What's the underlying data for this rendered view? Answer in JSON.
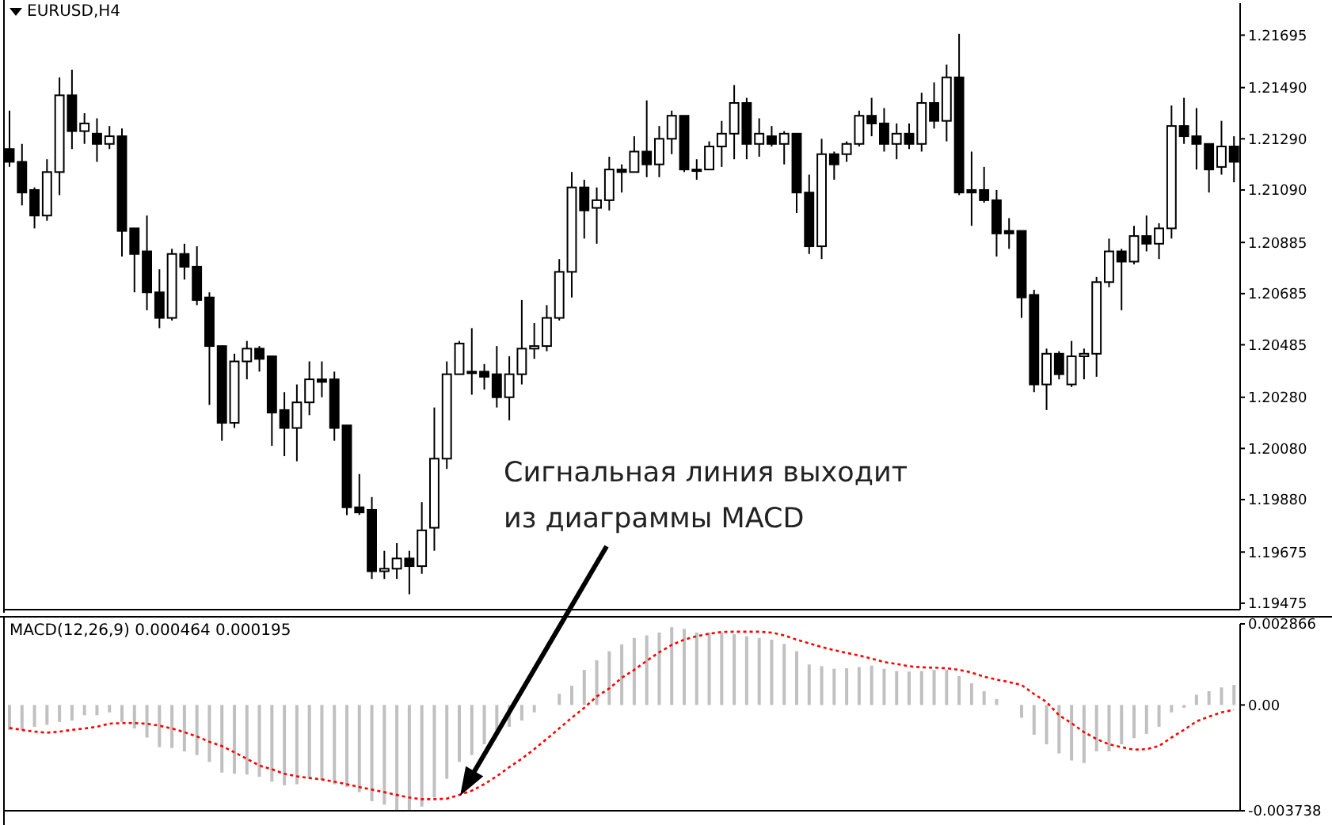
{
  "chart_data": [
    {
      "type": "candlestick",
      "title": "EURUSD,H4",
      "color": "#000000",
      "tick_labels": "y",
      "categories": [
        null,
        null,
        null,
        null,
        null,
        null,
        null,
        null,
        null,
        null,
        null,
        null,
        null,
        null,
        null,
        null,
        null,
        null,
        null,
        null,
        null,
        null,
        null,
        null,
        null,
        null,
        null,
        null,
        null,
        null,
        null,
        null,
        null,
        null,
        null,
        null,
        null,
        null,
        null,
        null,
        null,
        null,
        null,
        null,
        null,
        null,
        null,
        null,
        null,
        null,
        null,
        null,
        null,
        null,
        null,
        null,
        null,
        null,
        null,
        null,
        null,
        null,
        null,
        null,
        null,
        null,
        null,
        null,
        null,
        null,
        null,
        null,
        null,
        null,
        null,
        null,
        null,
        null,
        null,
        null,
        null,
        null,
        null,
        null,
        null,
        null,
        null,
        null,
        null,
        null,
        null,
        null,
        null,
        null,
        null,
        null,
        null,
        null,
        null
      ],
      "ohlc": [
        [
          1.2125,
          1.214,
          1.2118,
          1.212
        ],
        [
          1.212,
          1.2127,
          1.2103,
          1.2108
        ],
        [
          1.2109,
          1.211,
          1.2094,
          1.2099
        ],
        [
          1.2099,
          1.2121,
          1.2097,
          1.2116
        ],
        [
          1.2116,
          1.2153,
          1.2107,
          1.2146
        ],
        [
          1.2146,
          1.2156,
          1.2125,
          1.2132
        ],
        [
          1.2132,
          1.2139,
          1.2127,
          1.2135
        ],
        [
          1.2131,
          1.2137,
          1.212,
          1.2127
        ],
        [
          1.2127,
          1.2134,
          1.2125,
          1.213
        ],
        [
          1.213,
          1.2133,
          1.2083,
          1.2093
        ],
        [
          1.2094,
          1.2094,
          1.2069,
          1.2084
        ],
        [
          1.2085,
          1.2099,
          1.2062,
          1.2069
        ],
        [
          1.2069,
          1.2078,
          1.2055,
          1.2059
        ],
        [
          1.2059,
          1.2086,
          1.2058,
          1.2084
        ],
        [
          1.2084,
          1.2088,
          1.2074,
          1.2079
        ],
        [
          1.2079,
          1.2087,
          1.2064,
          1.2066
        ],
        [
          1.2067,
          1.2069,
          1.2025,
          1.2048
        ],
        [
          1.2048,
          1.2048,
          1.2011,
          1.2018
        ],
        [
          1.2018,
          1.2045,
          1.2016,
          1.2042
        ],
        [
          1.2042,
          1.205,
          1.2035,
          1.2047
        ],
        [
          1.2047,
          1.2048,
          1.2038,
          1.2043
        ],
        [
          1.2044,
          1.2044,
          1.2009,
          1.2022
        ],
        [
          1.2023,
          1.203,
          1.2005,
          1.2016
        ],
        [
          1.2016,
          1.2033,
          1.2003,
          1.2026
        ],
        [
          1.2026,
          1.2042,
          1.2021,
          1.2035
        ],
        [
          1.2035,
          1.2042,
          1.2028,
          1.2034
        ],
        [
          1.2035,
          1.2038,
          1.2011,
          1.2016
        ],
        [
          1.2017,
          1.2017,
          1.1982,
          1.1985
        ],
        [
          1.1985,
          1.1998,
          1.1982,
          1.1983
        ],
        [
          1.1984,
          1.1989,
          1.1957,
          1.196
        ],
        [
          1.196,
          1.1968,
          1.1957,
          1.1961
        ],
        [
          1.1961,
          1.1971,
          1.1957,
          1.1965
        ],
        [
          1.1965,
          1.1968,
          1.1951,
          1.1962
        ],
        [
          1.1962,
          1.1987,
          1.1959,
          1.1976
        ],
        [
          1.1977,
          1.2024,
          1.1968,
          1.2004
        ],
        [
          1.2004,
          1.2042,
          1.2,
          1.2037
        ],
        [
          1.2037,
          1.205,
          1.2037,
          1.2049
        ],
        [
          1.2038,
          1.2055,
          1.2029,
          1.2038
        ],
        [
          1.2038,
          1.2041,
          1.2031,
          1.2036
        ],
        [
          1.2037,
          1.2048,
          1.2024,
          1.2028
        ],
        [
          1.2028,
          1.2044,
          1.2019,
          1.2037
        ],
        [
          1.2037,
          1.2066,
          1.2033,
          1.2047
        ],
        [
          1.2047,
          1.2057,
          1.2043,
          1.2048
        ],
        [
          1.2048,
          1.2064,
          1.2046,
          1.2059
        ],
        [
          1.2059,
          1.2082,
          1.2058,
          1.2077
        ],
        [
          1.2077,
          1.2116,
          1.2067,
          1.211
        ],
        [
          1.211,
          1.2113,
          1.209,
          1.2101
        ],
        [
          1.2102,
          1.211,
          1.2088,
          1.2105
        ],
        [
          1.2105,
          1.2122,
          1.2101,
          1.2117
        ],
        [
          1.2117,
          1.2119,
          1.2108,
          1.2116
        ],
        [
          1.2116,
          1.213,
          1.2116,
          1.2124
        ],
        [
          1.2124,
          1.2144,
          1.2114,
          1.2119
        ],
        [
          1.2119,
          1.2134,
          1.2114,
          1.2129
        ],
        [
          1.2129,
          1.214,
          1.2123,
          1.2138
        ],
        [
          1.2138,
          1.2138,
          1.2116,
          1.2117
        ],
        [
          1.2117,
          1.2121,
          1.2113,
          1.2117
        ],
        [
          1.2117,
          1.2128,
          1.2117,
          1.2126
        ],
        [
          1.2126,
          1.2136,
          1.2118,
          1.2131
        ],
        [
          1.2131,
          1.215,
          1.2121,
          1.2143
        ],
        [
          1.2143,
          1.2145,
          1.2121,
          1.2127
        ],
        [
          1.2127,
          1.2137,
          1.2122,
          1.2131
        ],
        [
          1.213,
          1.2134,
          1.2126,
          1.2127
        ],
        [
          1.2127,
          1.2132,
          1.2119,
          1.2131
        ],
        [
          1.2131,
          1.2131,
          1.21,
          1.2108
        ],
        [
          1.2108,
          1.2115,
          1.2084,
          1.2087
        ],
        [
          1.2087,
          1.2129,
          1.2082,
          1.2123
        ],
        [
          1.2123,
          1.2124,
          1.2113,
          1.2119
        ],
        [
          1.2123,
          1.2128,
          1.212,
          1.2127
        ],
        [
          1.2127,
          1.214,
          1.2126,
          1.2138
        ],
        [
          1.2138,
          1.2145,
          1.213,
          1.2135
        ],
        [
          1.2135,
          1.2141,
          1.2124,
          1.2127
        ],
        [
          1.2127,
          1.2135,
          1.2121,
          1.2131
        ],
        [
          1.2131,
          1.2135,
          1.2125,
          1.2127
        ],
        [
          1.2127,
          1.2147,
          1.2124,
          1.2143
        ],
        [
          1.2143,
          1.2151,
          1.2133,
          1.2136
        ],
        [
          1.2136,
          1.2158,
          1.2128,
          1.2153
        ],
        [
          1.2153,
          1.217,
          1.2107,
          1.2108
        ],
        [
          1.2109,
          1.2124,
          1.2095,
          1.2108
        ],
        [
          1.2109,
          1.2118,
          1.2104,
          1.2105
        ],
        [
          1.2105,
          1.2109,
          1.2083,
          1.2092
        ],
        [
          1.2093,
          1.2098,
          1.2086,
          1.2092
        ],
        [
          1.2093,
          1.2093,
          1.2059,
          1.2067
        ],
        [
          1.2068,
          1.207,
          1.203,
          1.2033
        ],
        [
          1.2033,
          1.2047,
          1.2023,
          1.2045
        ],
        [
          1.2045,
          1.2046,
          1.2035,
          1.2037
        ],
        [
          1.2033,
          1.205,
          1.2032,
          1.2044
        ],
        [
          1.2044,
          1.2047,
          1.2035,
          1.2045
        ],
        [
          1.2045,
          1.2075,
          1.2036,
          1.2073
        ],
        [
          1.2073,
          1.209,
          1.2071,
          1.2085
        ],
        [
          1.2085,
          1.2086,
          1.2062,
          1.2081
        ],
        [
          1.2081,
          1.2095,
          1.208,
          1.2091
        ],
        [
          1.2091,
          1.2099,
          1.2085,
          1.2088
        ],
        [
          1.2088,
          1.2096,
          1.2082,
          1.2094
        ],
        [
          1.2094,
          1.2142,
          1.209,
          1.2134
        ],
        [
          1.2134,
          1.2145,
          1.2127,
          1.213
        ],
        [
          1.213,
          1.2141,
          1.2117,
          1.2127
        ],
        [
          1.2127,
          1.2127,
          1.2108,
          1.2117
        ],
        [
          1.2118,
          1.2136,
          1.2115,
          1.2126
        ],
        [
          1.2126,
          1.213,
          1.2112,
          1.212
        ]
      ],
      "ylim": [
        1.1945,
        1.2182
      ],
      "yticks": [
        1.21695,
        {
          "value": 1.2149,
          "label": "1.21490"
        },
        {
          "value": 1.2129,
          "label": "1.21290"
        },
        {
          "value": 1.2109,
          "label": "1.21090"
        },
        1.20885,
        1.20685,
        1.20485,
        {
          "value": 1.2028,
          "label": "1.20280"
        },
        {
          "value": 1.2008,
          "label": "1.20080"
        },
        {
          "value": 1.1988,
          "label": "1.19880"
        },
        1.19675,
        1.19475
      ],
      "annotations": [
        "Сигнальная линия выходит из диаграммы MACD"
      ]
    },
    {
      "type": "bar",
      "title": "MACD(12,26,9) 0.000464 0.000195",
      "tick_labels": "y",
      "categories": [
        null,
        null,
        null,
        null,
        null,
        null,
        null,
        null,
        null,
        null,
        null,
        null,
        null,
        null,
        null,
        null,
        null,
        null,
        null,
        null,
        null,
        null,
        null,
        null,
        null,
        null,
        null,
        null,
        null,
        null,
        null,
        null,
        null,
        null,
        null,
        null,
        null,
        null,
        null,
        null,
        null,
        null,
        null,
        null,
        null,
        null,
        null,
        null,
        null,
        null,
        null,
        null,
        null,
        null,
        null,
        null,
        null,
        null,
        null,
        null,
        null,
        null,
        null,
        null,
        null,
        null,
        null,
        null,
        null,
        null,
        null,
        null,
        null,
        null,
        null,
        null,
        null,
        null,
        null,
        null,
        null,
        null,
        null,
        null,
        null,
        null,
        null,
        null,
        null,
        null,
        null,
        null,
        null,
        null,
        null,
        null,
        null,
        null,
        null
      ],
      "series": [
        {
          "type": "bar",
          "color": "#c0c0c0",
          "values": [
            -0.00088,
            -0.00088,
            -0.00077,
            -0.0007,
            -0.0006,
            -0.00055,
            -0.00036,
            -0.00036,
            -0.00026,
            -0.0006,
            -0.00083,
            -0.00115,
            -0.00149,
            -0.00152,
            -0.00164,
            -0.00177,
            -0.00201,
            -0.00239,
            -0.00243,
            -0.00246,
            -0.00254,
            -0.00271,
            -0.00284,
            -0.0028,
            -0.00261,
            -0.00265,
            -0.0028,
            -0.0029,
            -0.00308,
            -0.0034,
            -0.00352,
            -0.00372,
            -0.00373,
            -0.00359,
            -0.00327,
            -0.00261,
            -0.00201,
            -0.00177,
            -0.00139,
            -0.00092,
            -0.00077,
            -0.00055,
            -0.00026,
            0,
            0.0004,
            0.00068,
            0.00124,
            0.00158,
            0.0019,
            0.00214,
            0.00237,
            0.00246,
            0.00256,
            0.00275,
            0.00269,
            0.00256,
            0.00256,
            0.00256,
            0.0025,
            0.00243,
            0.00237,
            0.00231,
            0.00216,
            0.0019,
            0.00143,
            0.00137,
            0.00128,
            0.0013,
            0.00134,
            0.00139,
            0.00128,
            0.0012,
            0.00118,
            0.0012,
            0.00124,
            0.00124,
            0.00102,
            0.00077,
            0.00049,
            0.00021,
            0,
            -0.00045,
            -0.00105,
            -0.00139,
            -0.00171,
            -0.00196,
            -0.00205,
            -0.00164,
            -0.00164,
            -0.00139,
            -0.00117,
            -0.00102,
            -0.00077,
            -0.00026,
            -0.0001,
            0.00036,
            0.00049,
            0.00062,
            0.00071
          ]
        },
        {
          "type": "line",
          "color": "#ff0000",
          "line_style": "dotted",
          "marker": "none",
          "values": [
            -0.00081,
            -0.00088,
            -0.00094,
            -0.00098,
            -0.00094,
            -0.00088,
            -0.00083,
            -0.00077,
            -0.00066,
            -0.00064,
            -0.00064,
            -0.00066,
            -0.00073,
            -0.00083,
            -0.00096,
            -0.00111,
            -0.0013,
            -0.00145,
            -0.00167,
            -0.0019,
            -0.00214,
            -0.00227,
            -0.00243,
            -0.00252,
            -0.00258,
            -0.00263,
            -0.00271,
            -0.0028,
            -0.0029,
            -0.00299,
            -0.00308,
            -0.00318,
            -0.00327,
            -0.00333,
            -0.00333,
            -0.00331,
            -0.00318,
            -0.00303,
            -0.0028,
            -0.00252,
            -0.0022,
            -0.0019,
            -0.00156,
            -0.0012,
            -0.00083,
            -0.00045,
            -0.0001,
            0.0003,
            0.00058,
            0.00096,
            0.00124,
            0.00156,
            0.00186,
            0.00212,
            0.00231,
            0.00243,
            0.00252,
            0.00258,
            0.00259,
            0.00259,
            0.00259,
            0.00256,
            0.00246,
            0.00231,
            0.00218,
            0.00205,
            0.00194,
            0.00184,
            0.00175,
            0.00164,
            0.00152,
            0.00145,
            0.00137,
            0.00133,
            0.00132,
            0.0013,
            0.00124,
            0.00115,
            0.001,
            0.0009,
            0.00081,
            0.00071,
            0.00039,
            0.00011,
            -0.00036,
            -0.00064,
            -0.00096,
            -0.0012,
            -0.00139,
            -0.00149,
            -0.00158,
            -0.00156,
            -0.00145,
            -0.00115,
            -0.00088,
            -0.00058,
            -0.00041,
            -0.00026,
            -0.00017
          ]
        }
      ],
      "ylim": [
        -0.003738,
        0.002866
      ],
      "yticks": [
        0.002866,
        {
          "value": 0,
          "label": "0.00"
        },
        -0.003738
      ]
    }
  ]
}
